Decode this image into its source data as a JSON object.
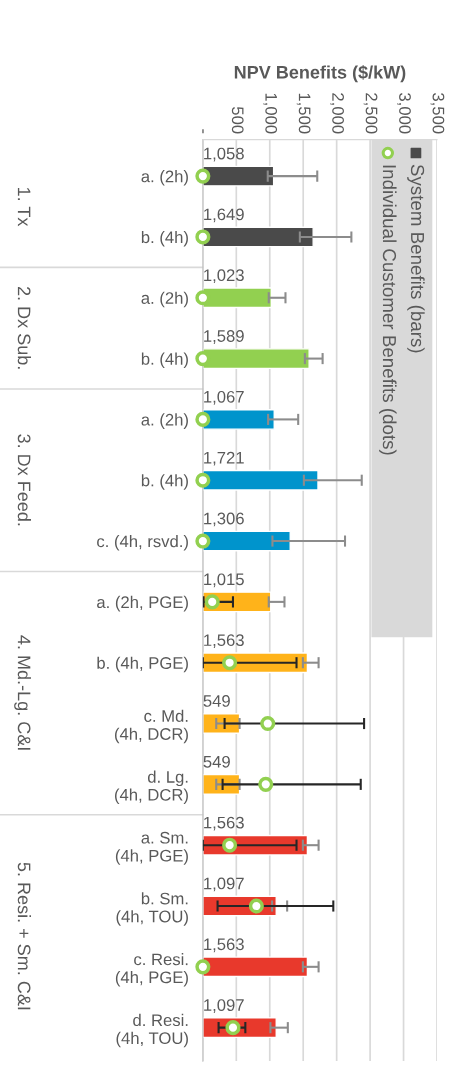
{
  "chart_data": {
    "type": "bar",
    "orientation": "horizontal",
    "xlabel": "NPV Benefits ($/kW)",
    "categories": [
      "a. (2h)",
      "b. (4h)",
      "a. (2h)",
      "b. (4h)",
      "a. (2h)",
      "b. (4h)",
      "c. (4h, rsvd.)",
      "a. (2h, PGE)",
      "b. (4h, PGE)",
      "c. Md.\n(4h, DCR)",
      "d. Lg.\n(4h, DCR)",
      "a. Sm.\n(4h, PGE)",
      "b. Sm.\n(4h, TOU)",
      "c. Resi.\n(4h, PGE)",
      "d. Resi.\n(4h, TOU)"
    ],
    "series": [
      {
        "name": "System Benefits (bars)",
        "colors": [
          "#4a4a4a",
          "#4a4a4a",
          "#92d050",
          "#92d050",
          "#0094cc",
          "#0094cc",
          "#0094cc",
          "#ffb31a",
          "#ffb31a",
          "#ffb31a",
          "#ffb31a",
          "#e8392c",
          "#e8392c",
          "#e8392c",
          "#e8392c"
        ],
        "values": [
          1058,
          1649,
          1023,
          1589,
          1067,
          1721,
          1306,
          1015,
          1563,
          549,
          549,
          1563,
          1097,
          1563,
          1097
        ],
        "value_labels": [
          "1,058",
          "1,649",
          "1,023",
          "1,589",
          "1,067",
          "1,721",
          "1,306",
          "1,015",
          "1,563",
          "549",
          "549",
          "1,563",
          "1,097",
          "1,563",
          "1,097"
        ],
        "errors": [
          [
            970,
            1710
          ],
          [
            1450,
            2220
          ],
          [
            985,
            1235
          ],
          [
            1525,
            1790
          ],
          [
            975,
            1425
          ],
          [
            1510,
            2375
          ],
          [
            1040,
            2125
          ],
          [
            985,
            1220
          ],
          [
            1495,
            1730
          ],
          [
            200,
            549
          ],
          [
            200,
            549
          ],
          [
            1495,
            1730
          ],
          [
            1035,
            1260
          ],
          [
            1495,
            1730
          ],
          [
            1010,
            1270
          ]
        ]
      },
      {
        "name": "Individual Customer Benefits (dots)",
        "type": "scatter",
        "color": "#92d050",
        "values": [
          0,
          0,
          0,
          0,
          0,
          0,
          0,
          140,
          400,
          970,
          940,
          400,
          800,
          0,
          450
        ],
        "errors": [
          null,
          null,
          null,
          null,
          null,
          null,
          null,
          [
            10,
            450
          ],
          [
            0,
            1400
          ],
          [
            325,
            2410
          ],
          [
            295,
            2360
          ],
          [
            0,
            1400
          ],
          [
            220,
            1950
          ],
          null,
          [
            235,
            635
          ]
        ]
      }
    ],
    "xlim": [
      0,
      3500
    ],
    "xticks": [
      {
        "value": 0,
        "label": "-"
      },
      500,
      {
        "value": 1000,
        "label": "1,000"
      },
      {
        "value": 1500,
        "label": "1,500"
      },
      {
        "value": 2000,
        "label": "2,000"
      },
      {
        "value": 2500,
        "label": "2,500"
      },
      {
        "value": 3000,
        "label": "3,000"
      },
      {
        "value": 3500,
        "label": "3,500"
      }
    ],
    "grid": "x",
    "legend": "right",
    "marker": "circle",
    "annotations": [
      "1. Tx",
      "2. Dx Sub.",
      "3. Dx Feed.",
      "4. Md.-Lg. C&I",
      "5. Resi. + Sm. C&I"
    ]
  }
}
